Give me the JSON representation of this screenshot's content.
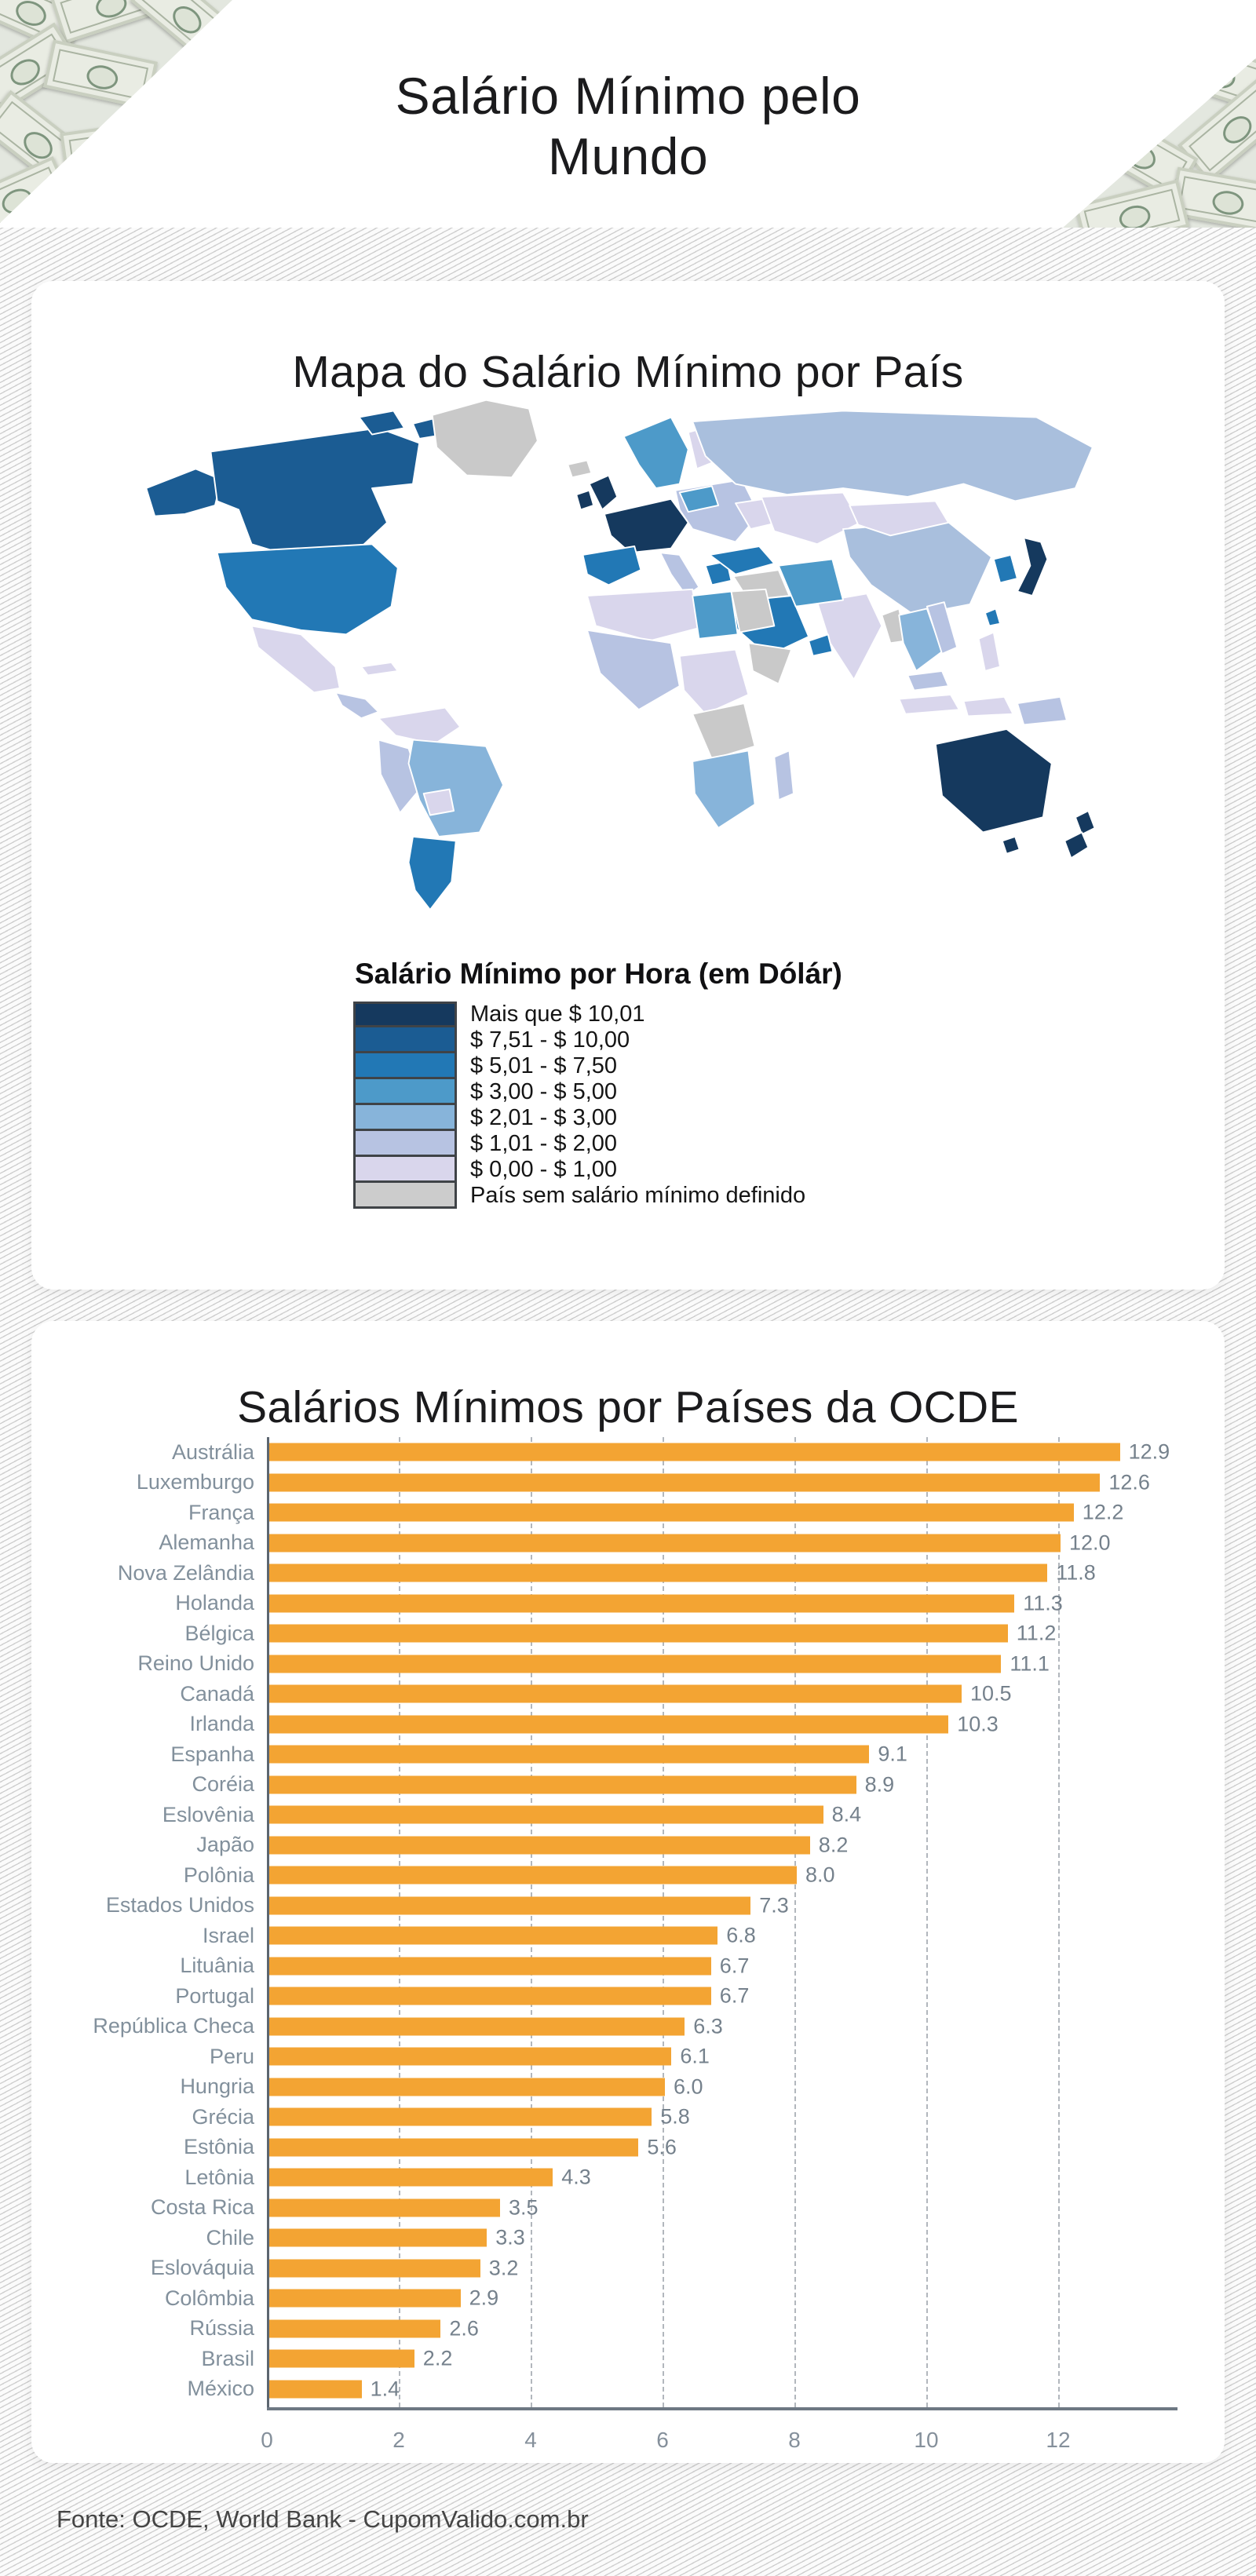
{
  "header": {
    "title": "Salário Mínimo pelo Mundo"
  },
  "map_section": {
    "title": "Mapa do Salário Mínimo por País",
    "legend_title": "Salário Mínimo por Hora (em Dólár)",
    "legend": [
      {
        "label": "Mais que $ 10,01",
        "color": "#15395e"
      },
      {
        "label": "$ 7,51 - $ 10,00",
        "color": "#1b5c93"
      },
      {
        "label": "$ 5,01 - $ 7,50",
        "color": "#2278b5"
      },
      {
        "label": "$ 3,00 - $ 5,00",
        "color": "#4d9ac9"
      },
      {
        "label": "$ 2,01 - $ 3,00",
        "color": "#87b4da"
      },
      {
        "label": "$ 1,01 - $ 2,00",
        "color": "#b7c3e2"
      },
      {
        "label": "$ 0,00 - $ 1,00",
        "color": "#d9d6ec"
      },
      {
        "label": "País sem salário mínimo definido",
        "color": "#cccccc"
      }
    ],
    "extra_colors": {
      "eurasia_steel": "#a9bfdd",
      "no_data_gray": "#c9c9c9"
    }
  },
  "chart_section": {
    "title": "Salários Mínimos por Países da OCDE"
  },
  "chart_data": {
    "type": "bar",
    "orientation": "horizontal",
    "title": "Salários Mínimos por Países da OCDE",
    "categories": [
      "Austrália",
      "Luxemburgo",
      "França",
      "Alemanha",
      "Nova Zelândia",
      "Holanda",
      "Bélgica",
      "Reino Unido",
      "Canadá",
      "Irlanda",
      "Espanha",
      "Coréia",
      "Eslovênia",
      "Japão",
      "Polônia",
      "Estados Unidos",
      "Israel",
      "Lituânia",
      "Portugal",
      "República Checa",
      "Peru",
      "Hungria",
      "Grécia",
      "Estônia",
      "Letônia",
      "Costa Rica",
      "Chile",
      "Eslováquia",
      "Colômbia",
      "Rússia",
      "Brasil",
      "México"
    ],
    "values": [
      12.9,
      12.6,
      12.2,
      12.0,
      11.8,
      11.3,
      11.2,
      11.1,
      10.5,
      10.3,
      9.1,
      8.9,
      8.4,
      8.2,
      8.0,
      7.3,
      6.8,
      6.7,
      6.7,
      6.3,
      6.1,
      6.0,
      5.8,
      5.6,
      4.3,
      3.5,
      3.3,
      3.2,
      2.9,
      2.6,
      2.2,
      1.4
    ],
    "value_labels": [
      "12.9",
      "12.6",
      "12.2",
      "12.0",
      "11.8",
      "11.3",
      "11.2",
      "11.1",
      "10.5",
      "10.3",
      "9.1",
      "8.9",
      "8.4",
      "8.2",
      "8.0",
      "7.3",
      "6.8",
      "6.7",
      "6.7",
      "6.3",
      "6.1",
      "6.0",
      "5.8",
      "5.6",
      "4.3",
      "3.5",
      "3.3",
      "3.2",
      "2.9",
      "2.6",
      "2.2",
      "1.4"
    ],
    "xlim": [
      0,
      13.5
    ],
    "xticks": [
      0,
      2,
      4,
      6,
      8,
      10,
      12
    ],
    "bar_color": "#F3A433",
    "grid": "dashed-vertical",
    "xlabel": "",
    "ylabel": ""
  },
  "footer": {
    "text": "Fonte: OCDE, World Bank - CupomValido.com.br"
  }
}
